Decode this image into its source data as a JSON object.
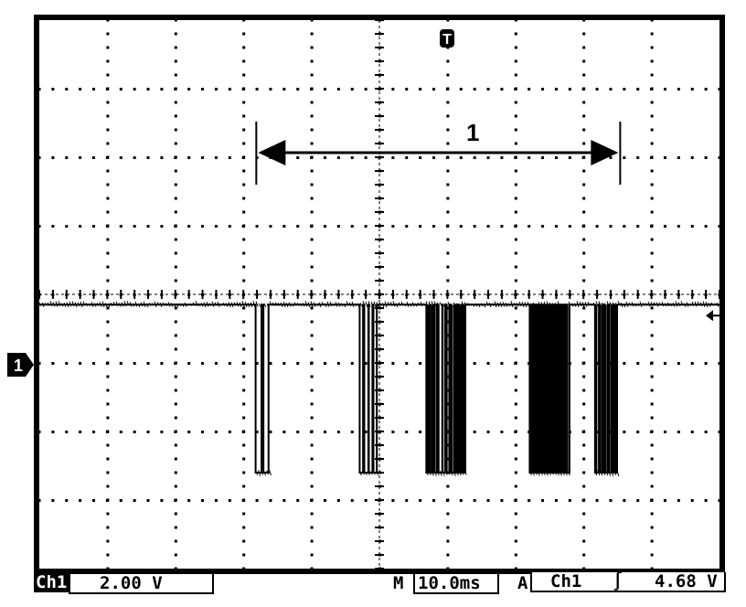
{
  "chart_data": {
    "type": "line",
    "title": "",
    "xlabel": "",
    "ylabel": "",
    "x_unit": "ms",
    "y_unit": "V",
    "x_scale_per_div": 10.0,
    "y_scale_per_div": 2.0,
    "xlim": [
      -60.8,
      39.2
    ],
    "ylim": [
      -2.7,
      13.3
    ],
    "grid": true,
    "grid_divisions": {
      "horizontal": 10,
      "vertical": 8
    },
    "trigger_time": 0,
    "trigger_level": 4.68,
    "idle_level": 5.0,
    "low_level": 0.1,
    "bursts": [
      {
        "start": -29.0,
        "end": -26.7,
        "pulses": 2
      },
      {
        "start": -13.7,
        "end": -11.0,
        "pulses": 4
      },
      {
        "start": -3.9,
        "end": 2.1,
        "pulses": 10
      },
      {
        "start": 11.3,
        "end": 17.2,
        "pulses": 16
      },
      {
        "start": 20.9,
        "end": 24.4,
        "pulses": 5
      }
    ],
    "cursors": {
      "label": "1",
      "t1": -28.9,
      "t2": 24.6
    }
  },
  "markers": {
    "trigger": "T",
    "channel_ground": "1",
    "trigger_level_icon": "arrow-left-icon"
  },
  "status_bar": {
    "channel": "Ch1",
    "volts_per_div": "2.00 V",
    "timebase_prefix": "M",
    "timebase": "10.0ms",
    "trigger_prefix": "A",
    "trigger_source": "Ch1",
    "trigger_slope_icon": "rising-edge-icon",
    "trigger_slope": "∫",
    "trigger_level": "4.68 V"
  },
  "colors": {
    "trace": "#000000",
    "background": "#ffffff"
  }
}
